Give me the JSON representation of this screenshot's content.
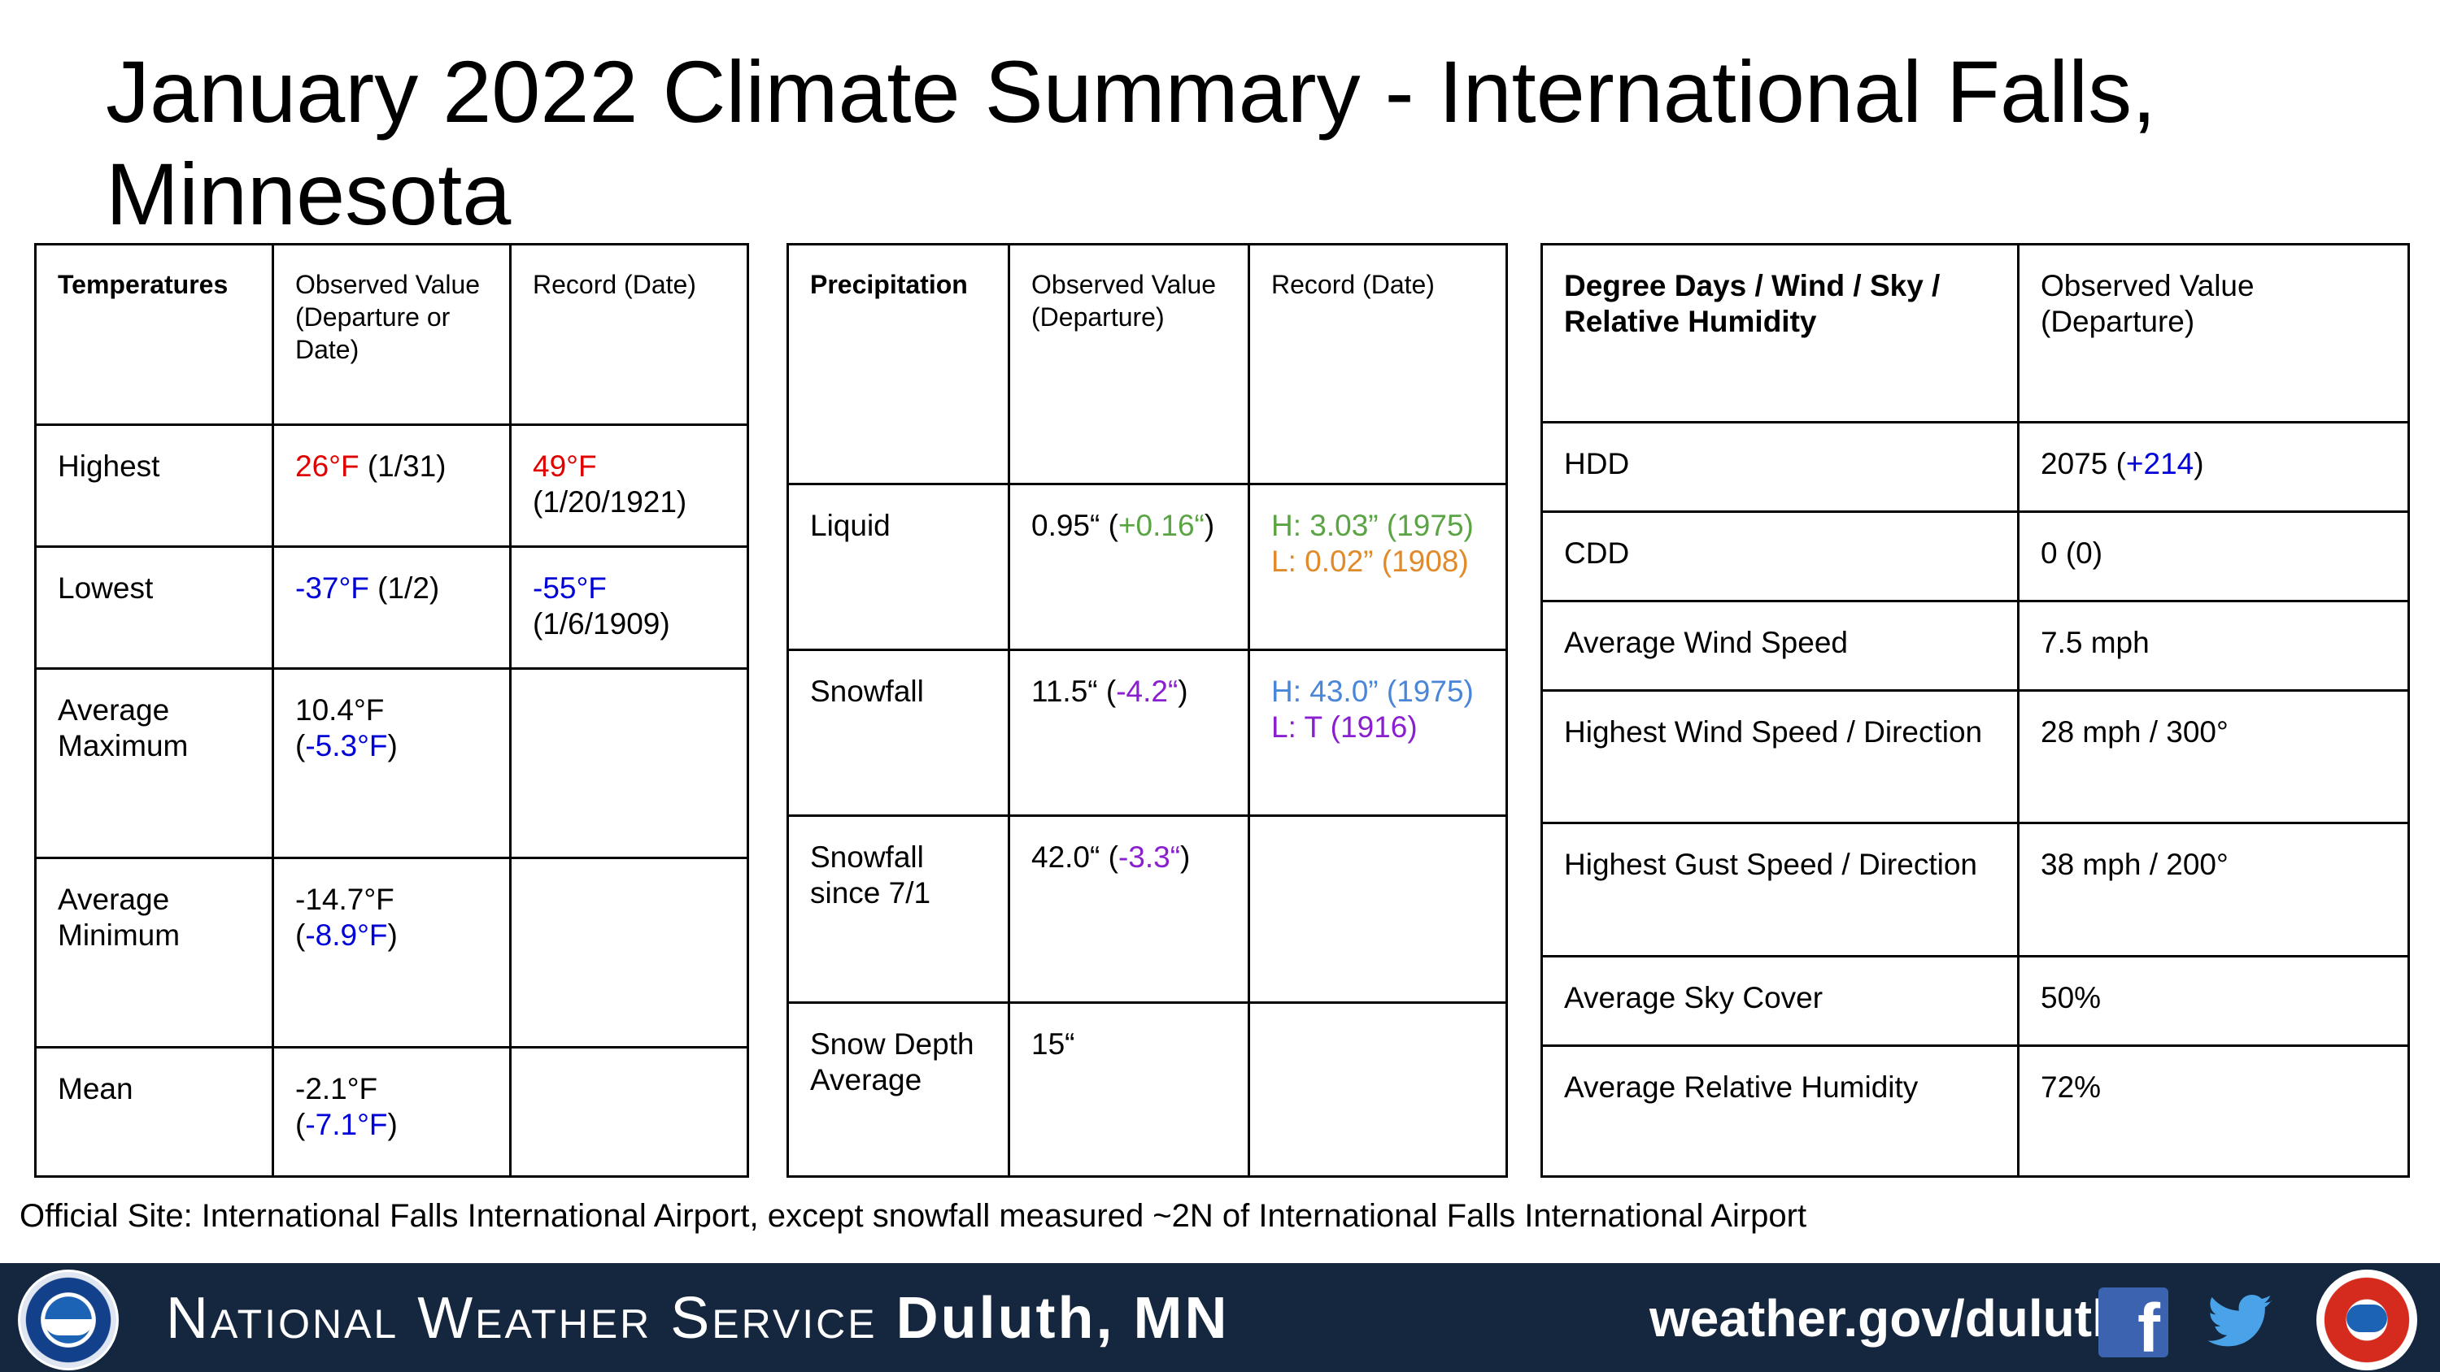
{
  "title": "January 2022 Climate Summary - International Falls, Minnesota",
  "temps": {
    "headers": [
      "Temperatures",
      "Observed Value (Departure or Date)",
      "Record (Date)"
    ],
    "highest": {
      "label": "Highest",
      "obs_val": "26°F",
      "obs_rest": " (1/31)",
      "rec_val": "49°F",
      "rec_rest": "(1/20/1921)"
    },
    "lowest": {
      "label": "Lowest",
      "obs_val": "-37°F",
      "obs_rest": " (1/2)",
      "rec_val": "-55°F",
      "rec_rest": "(1/6/1909)"
    },
    "avg_max": {
      "label": "Average Maximum",
      "obs_pre": "10.4°F (",
      "obs_dep": "-5.3°F",
      "obs_post": ")"
    },
    "avg_min": {
      "label": "Average Minimum",
      "obs_pre": "-14.7°F (",
      "obs_dep": "-8.9°F",
      "obs_post": ")"
    },
    "mean": {
      "label": "Mean",
      "obs_pre": "-2.1°F (",
      "obs_dep": "-7.1°F",
      "obs_post": ")"
    }
  },
  "precip": {
    "headers": [
      "Precipitation",
      "Observed Value (Departure)",
      "Record (Date)"
    ],
    "liquid": {
      "label": "Liquid",
      "obs_pre": "0.95“ (",
      "obs_dep": "+0.16“",
      "obs_post": ")",
      "rec_h": "H: 3.03” (1975)",
      "rec_l": "L: 0.02” (1908)"
    },
    "snowfall": {
      "label": "Snowfall",
      "obs_pre": "11.5“ (",
      "obs_dep": "-4.2“",
      "obs_post": ")",
      "rec_h": "H: 43.0” (1975)",
      "rec_l": "L: T (1916)"
    },
    "snow_since": {
      "label": "Snowfall since 7/1",
      "obs_pre": "42.0“ (",
      "obs_dep": "-3.3“",
      "obs_post": ")"
    },
    "snow_depth": {
      "label": "Snow Depth Average",
      "obs": "15“"
    }
  },
  "degree": {
    "headers": [
      "Degree Days / Wind / Sky / Relative Humidity",
      "Observed Value (Departure)"
    ],
    "hdd": {
      "label": "HDD",
      "obs_pre": "2075 (",
      "obs_dep": "+214",
      "obs_post": ")"
    },
    "cdd": {
      "label": "CDD",
      "obs": "0 (0)"
    },
    "avg_wind": {
      "label": "Average Wind Speed",
      "obs": "7.5 mph"
    },
    "high_wind": {
      "label": "Highest Wind Speed / Direction",
      "obs": "28 mph / 300°"
    },
    "high_gust": {
      "label": "Highest Gust Speed / Direction",
      "obs": "38 mph / 200°"
    },
    "sky": {
      "label": "Average Sky Cover",
      "obs": "50%"
    },
    "rh": {
      "label": "Average Relative Humidity",
      "obs": "72%"
    }
  },
  "footnote": "Official Site: International Falls International Airport, except snowfall measured ~2N of International Falls International Airport",
  "footer": {
    "org": "National Weather Service",
    "office": "Duluth, MN",
    "website": "weather.gov/duluth",
    "facebook_glyph": "f"
  }
}
